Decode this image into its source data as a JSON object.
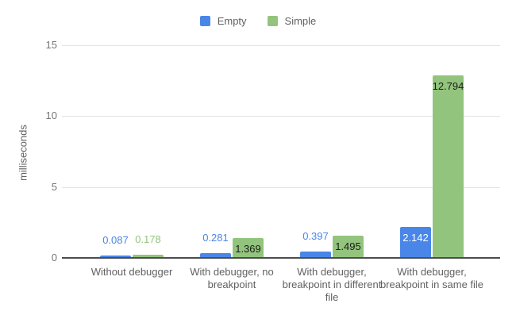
{
  "chart_data": {
    "type": "bar",
    "title": "",
    "xlabel": "",
    "ylabel": "milliseconds",
    "ylim": [
      0,
      15
    ],
    "yticks": [
      0,
      5,
      10,
      15
    ],
    "grid": true,
    "legend_position": "top-center",
    "categories": [
      "Without debugger",
      "With debugger, no breakpoint",
      "With debugger, breakpoint in different file",
      "With debugger, breakpoint in same file"
    ],
    "series": [
      {
        "name": "Empty",
        "color": "#4a86e8",
        "values": [
          0.087,
          0.281,
          0.397,
          2.142
        ],
        "value_labels": [
          "0.087",
          "0.281",
          "0.397",
          "2.142"
        ],
        "label_placements": [
          "above",
          "above",
          "above",
          "inside"
        ],
        "label_colors": [
          "#4a86e8",
          "#4a86e8",
          "#4a86e8",
          "#ffffff"
        ]
      },
      {
        "name": "Simple",
        "color": "#93c47d",
        "values": [
          0.178,
          1.369,
          1.495,
          12.794
        ],
        "value_labels": [
          "0.178",
          "1.369",
          "1.495",
          "12.794"
        ],
        "label_placements": [
          "above",
          "inside",
          "inside",
          "inside"
        ],
        "label_colors": [
          "#93c47d",
          "#1a1a1a",
          "#1a1a1a",
          "#1a1a1a"
        ]
      }
    ],
    "axis_colors": {
      "gridline": "#e3e3e3",
      "baseline": "#4d4d4d",
      "tick_text": "#757575",
      "label_text": "#616161"
    }
  }
}
